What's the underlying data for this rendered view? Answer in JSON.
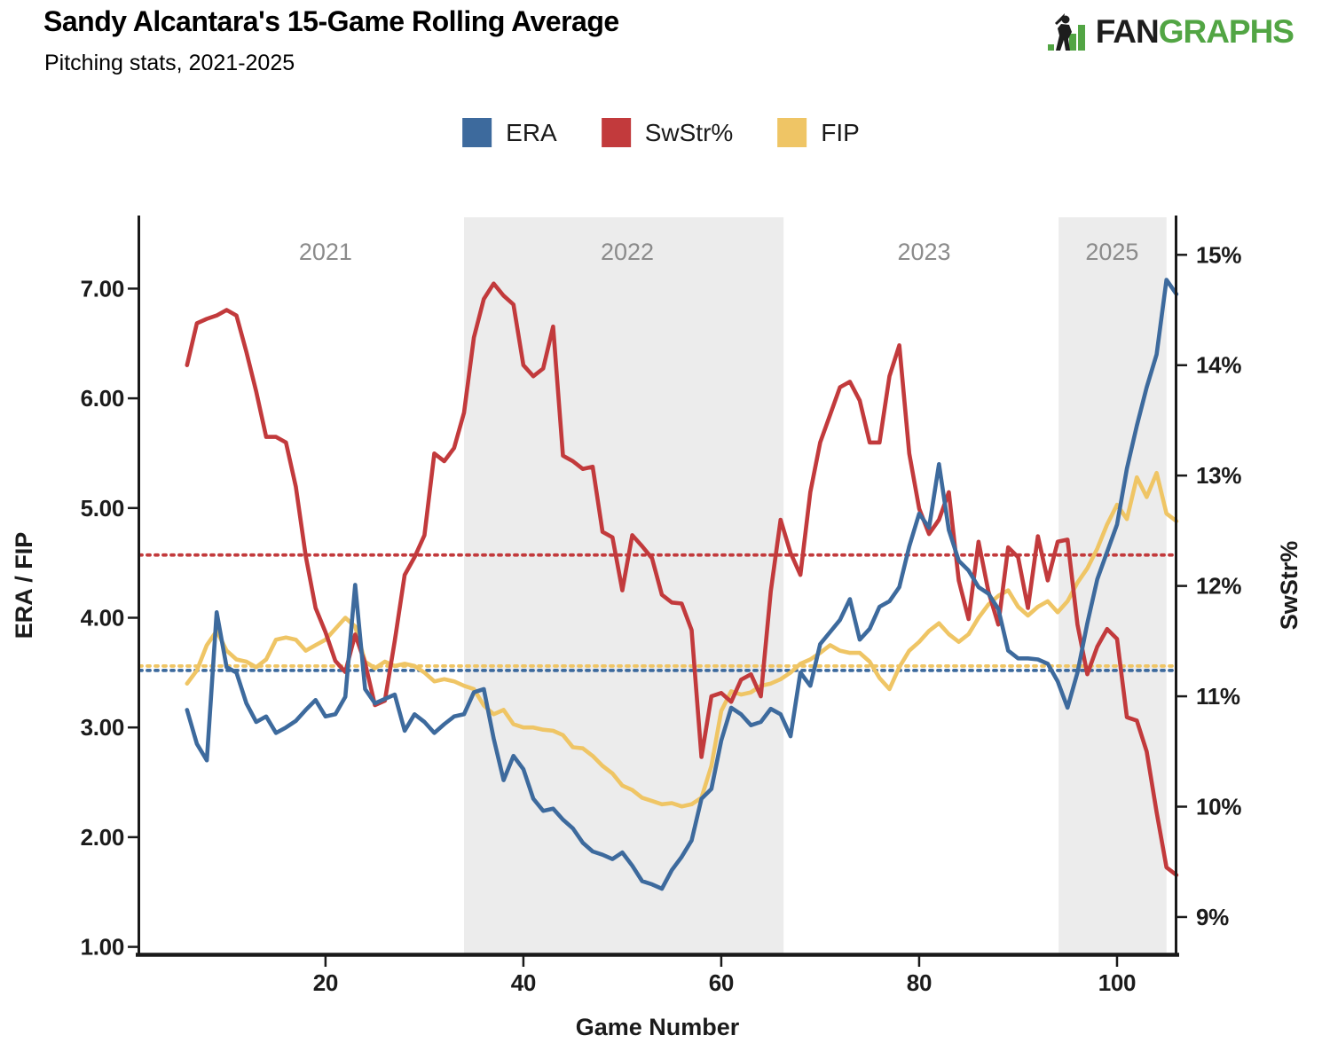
{
  "header": {
    "title": "Sandy Alcantara's 15-Game Rolling Average",
    "subtitle": "Pitching stats, 2021-2025"
  },
  "logo": {
    "text_black": "FAN",
    "text_green": "GRAPHS",
    "green": "#52a544"
  },
  "legend": {
    "items": [
      {
        "label": "ERA",
        "color": "#3d6a9d"
      },
      {
        "label": "SwStr%",
        "color": "#c23a3c"
      },
      {
        "label": "FIP",
        "color": "#efc565"
      }
    ]
  },
  "chart_data": {
    "type": "line",
    "title": "Sandy Alcantara's 15-Game Rolling Average",
    "subtitle": "Pitching stats, 2021-2025",
    "xlabel": "Game Number",
    "grid": false,
    "legend_position": "top-center",
    "x_range": [
      1,
      106.1
    ],
    "x_ticks": {
      "values": [
        20,
        40,
        60,
        80,
        100
      ],
      "labels": [
        "20",
        "40",
        "60",
        "80",
        "100"
      ]
    },
    "left_axis": {
      "label": "ERA / FIP",
      "range": [
        0.94,
        7.65
      ],
      "tick_values": [
        1,
        2,
        3,
        4,
        5,
        6,
        7
      ],
      "tick_labels": [
        "1.00",
        "2.00",
        "3.00",
        "4.00",
        "5.00",
        "6.00",
        "7.00"
      ]
    },
    "right_axis": {
      "label": "SwStr%",
      "range": [
        8.67,
        15.34
      ],
      "tick_values": [
        9,
        10,
        11,
        12,
        13,
        14,
        15
      ],
      "tick_labels": [
        "9%",
        "10%",
        "11%",
        "12%",
        "13%",
        "14%",
        "15%"
      ]
    },
    "band_color": "#ececec",
    "eras": [
      {
        "label": "2021",
        "start": 1,
        "end": 34,
        "shaded": false,
        "label_game": 20
      },
      {
        "label": "2022",
        "start": 34,
        "end": 66.3,
        "shaded": true,
        "label_game": 50.5
      },
      {
        "label": "2023",
        "start": 66.3,
        "end": 94.1,
        "shaded": false,
        "label_game": 80.5
      },
      {
        "label": "2025",
        "start": 94.1,
        "end": 105,
        "shaded": true,
        "label_game": 99.5
      }
    ],
    "avg_lines": [
      {
        "name": "SwStr% career average",
        "axis": "right",
        "value": 12.28,
        "color": "#c23a3c"
      },
      {
        "name": "FIP career average",
        "axis": "left",
        "value": 3.56,
        "color": "#efc565"
      },
      {
        "name": "ERA career average",
        "axis": "left",
        "value": 3.52,
        "color": "#3d6a9d"
      }
    ],
    "start_game": 6,
    "series": [
      {
        "name": "ERA",
        "axis": "left",
        "color": "#3d6a9d",
        "values": [
          3.16,
          2.85,
          2.7,
          4.05,
          3.55,
          3.5,
          3.22,
          3.05,
          3.1,
          2.95,
          3.0,
          3.06,
          3.16,
          3.25,
          3.1,
          3.12,
          3.28,
          4.3,
          3.35,
          3.22,
          3.26,
          3.3,
          2.97,
          3.12,
          3.05,
          2.95,
          3.03,
          3.1,
          3.12,
          3.32,
          3.35,
          2.9,
          2.52,
          2.74,
          2.62,
          2.35,
          2.24,
          2.26,
          2.16,
          2.08,
          1.95,
          1.87,
          1.84,
          1.8,
          1.86,
          1.74,
          1.6,
          1.57,
          1.53,
          1.7,
          1.82,
          1.97,
          2.35,
          2.44,
          2.88,
          3.18,
          3.12,
          3.02,
          3.05,
          3.17,
          3.12,
          2.92,
          3.5,
          3.38,
          3.76,
          3.87,
          3.98,
          4.17,
          3.8,
          3.9,
          4.1,
          4.15,
          4.28,
          4.65,
          4.95,
          4.82,
          5.4,
          4.8,
          4.52,
          4.43,
          4.28,
          4.22,
          4.08,
          3.7,
          3.63,
          3.63,
          3.62,
          3.58,
          3.42,
          3.18,
          3.5,
          3.95,
          4.35,
          4.6,
          4.85,
          5.36,
          5.75,
          6.1,
          6.4,
          7.08,
          6.95
        ]
      },
      {
        "name": "SwStr%",
        "axis": "right",
        "color": "#c23a3c",
        "values": [
          14.0,
          14.38,
          14.42,
          14.45,
          14.5,
          14.45,
          14.12,
          13.76,
          13.35,
          13.35,
          13.3,
          12.9,
          12.27,
          11.8,
          11.58,
          11.32,
          11.22,
          11.56,
          11.3,
          10.92,
          10.96,
          11.5,
          12.1,
          12.26,
          12.46,
          13.2,
          13.13,
          13.25,
          13.57,
          14.25,
          14.6,
          14.74,
          14.63,
          14.55,
          14.0,
          13.9,
          13.97,
          14.35,
          13.18,
          13.13,
          13.06,
          13.08,
          12.49,
          12.44,
          11.96,
          12.46,
          12.36,
          12.25,
          11.92,
          11.85,
          11.84,
          11.6,
          10.45,
          11.0,
          11.03,
          10.95,
          11.15,
          11.2,
          11.0,
          11.95,
          12.6,
          12.3,
          12.1,
          12.85,
          13.3,
          13.55,
          13.8,
          13.85,
          13.68,
          13.3,
          13.3,
          13.9,
          14.18,
          13.2,
          12.7,
          12.47,
          12.6,
          12.85,
          12.05,
          11.7,
          12.4,
          11.95,
          11.65,
          12.35,
          12.26,
          11.8,
          12.45,
          12.05,
          12.4,
          12.42,
          11.65,
          11.2,
          11.45,
          11.61,
          11.52,
          10.81,
          10.78,
          10.5,
          9.95,
          9.45,
          9.38
        ]
      },
      {
        "name": "FIP",
        "axis": "left",
        "color": "#efc565",
        "values": [
          3.4,
          3.52,
          3.75,
          3.88,
          3.7,
          3.62,
          3.6,
          3.55,
          3.62,
          3.8,
          3.82,
          3.8,
          3.7,
          3.75,
          3.8,
          3.9,
          4.0,
          3.92,
          3.6,
          3.54,
          3.6,
          3.56,
          3.58,
          3.56,
          3.5,
          3.42,
          3.44,
          3.42,
          3.38,
          3.35,
          3.2,
          3.12,
          3.16,
          3.03,
          3.0,
          3.0,
          2.98,
          2.97,
          2.93,
          2.82,
          2.81,
          2.74,
          2.65,
          2.58,
          2.47,
          2.43,
          2.36,
          2.33,
          2.3,
          2.31,
          2.28,
          2.3,
          2.36,
          2.65,
          3.15,
          3.33,
          3.3,
          3.32,
          3.38,
          3.4,
          3.44,
          3.5,
          3.58,
          3.62,
          3.68,
          3.75,
          3.7,
          3.68,
          3.68,
          3.6,
          3.45,
          3.35,
          3.55,
          3.7,
          3.78,
          3.88,
          3.95,
          3.85,
          3.78,
          3.85,
          4.0,
          4.12,
          4.2,
          4.25,
          4.1,
          4.02,
          4.1,
          4.15,
          4.05,
          4.15,
          4.32,
          4.45,
          4.63,
          4.85,
          5.03,
          4.9,
          5.28,
          5.1,
          5.32,
          4.95,
          4.88
        ]
      }
    ]
  }
}
